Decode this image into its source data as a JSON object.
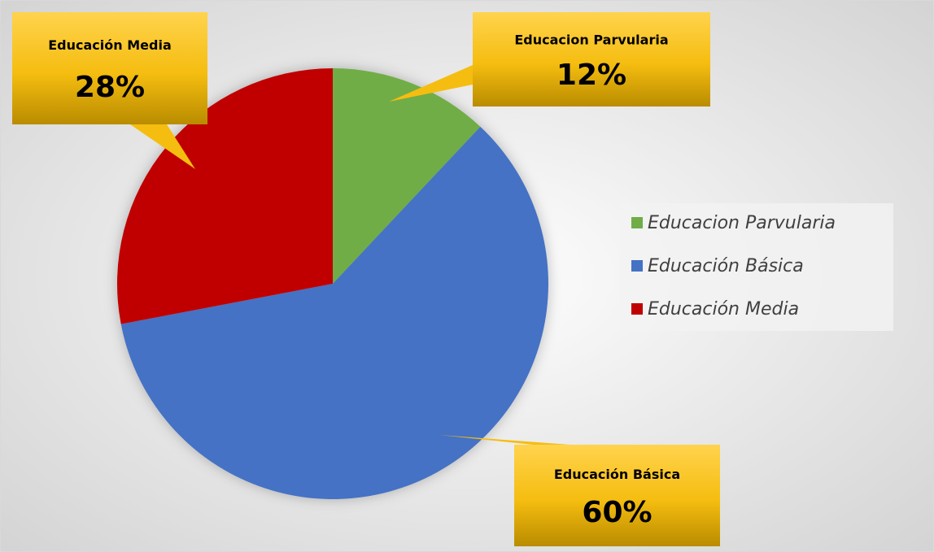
{
  "chart_data": {
    "type": "pie",
    "categories": [
      "Educacion Parvularia",
      "Educación Básica",
      "Educación Media"
    ],
    "values": [
      12,
      60,
      28
    ],
    "value_labels": [
      "12%",
      "60%",
      "28%"
    ],
    "colors": [
      "#70ad47",
      "#4472c4",
      "#c00000"
    ],
    "legend": "right"
  }
}
